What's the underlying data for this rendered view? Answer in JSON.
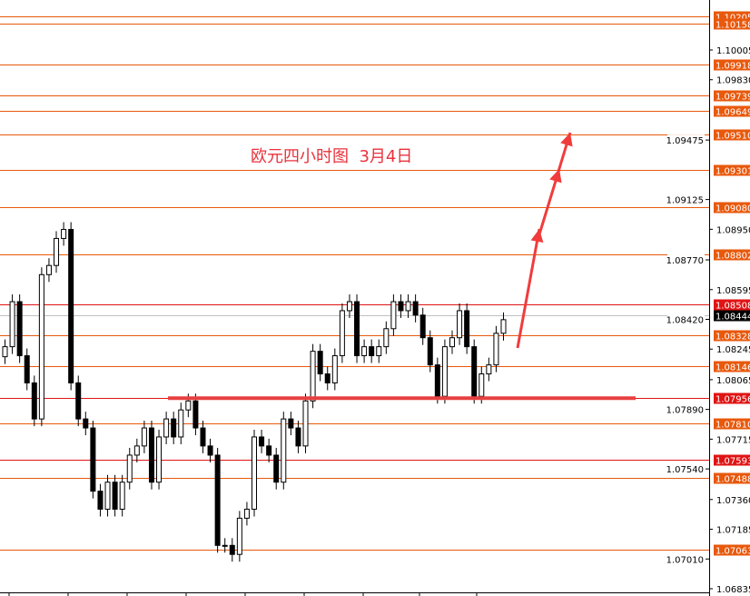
{
  "chart_data": {
    "type": "candlestick",
    "title": "欧元四小时图  3月4日",
    "ylim": [
      1.06835,
      1.103
    ],
    "axis_ticks": [
      "1.10005",
      "1.09830",
      "1.09475",
      "1.09125",
      "1.08950",
      "1.08770",
      "1.08595",
      "1.08420",
      "1.08245",
      "1.08065",
      "1.07890",
      "1.07715",
      "1.07540",
      "1.07360",
      "1.07185",
      "1.07010",
      "1.06835"
    ],
    "first_open": 1.082,
    "closes": [
      1.08259,
      1.08524,
      1.08206,
      1.08046,
      1.07834,
      1.08683,
      1.08737,
      1.08896,
      1.08949,
      1.08046,
      1.07834,
      1.07781,
      1.07409,
      1.07303,
      1.07462,
      1.07303,
      1.07462,
      1.07621,
      1.07675,
      1.07781,
      1.07462,
      1.07728,
      1.07834,
      1.07728,
      1.07887,
      1.0794,
      1.07781,
      1.07675,
      1.07621,
      1.0709,
      1.0709,
      1.07037,
      1.0725,
      1.07303,
      1.07728,
      1.07675,
      1.07621,
      1.07462,
      1.07834,
      1.07781,
      1.07675,
      1.0794,
      1.08232,
      1.08099,
      1.08046,
      1.08206,
      1.08471,
      1.08524,
      1.08206,
      1.08259,
      1.08206,
      1.08259,
      1.08365,
      1.08524,
      1.08471,
      1.08524,
      1.08445,
      1.08312,
      1.08152,
      1.07967,
      1.08259,
      1.08312,
      1.08471,
      1.08259,
      1.07967,
      1.08099,
      1.08152,
      1.08338,
      1.08418
    ],
    "levels": [
      {
        "price": "1.10205",
        "color": "#e8590c"
      },
      {
        "price": "1.10158",
        "color": "#e8590c"
      },
      {
        "price": "1.09918",
        "color": "#e8590c"
      },
      {
        "price": "1.09739",
        "color": "#e8590c"
      },
      {
        "price": "1.09649",
        "color": "#e8590c"
      },
      {
        "price": "1.09510",
        "color": "#e8590c"
      },
      {
        "price": "1.09301",
        "color": "#e8590c"
      },
      {
        "price": "1.09080",
        "color": "#e8590c"
      },
      {
        "price": "1.08802",
        "color": "#e8590c"
      },
      {
        "price": "1.08508",
        "color": "#e01414"
      },
      {
        "price": "1.08328",
        "color": "#e8590c"
      },
      {
        "price": "1.08146",
        "color": "#e8590c"
      },
      {
        "price": "1.07956",
        "color": "#e01414"
      },
      {
        "price": "1.07810",
        "color": "#e8590c"
      },
      {
        "price": "1.07593",
        "color": "#e01414"
      },
      {
        "price": "1.07488",
        "color": "#e8590c"
      },
      {
        "price": "1.07063",
        "color": "#e8590c"
      }
    ],
    "current_price": {
      "price": "1.08444",
      "color": "#000000"
    },
    "support_line": {
      "price": 1.07956,
      "color": "#e84040"
    },
    "arrow_color": "#f03c3c"
  }
}
